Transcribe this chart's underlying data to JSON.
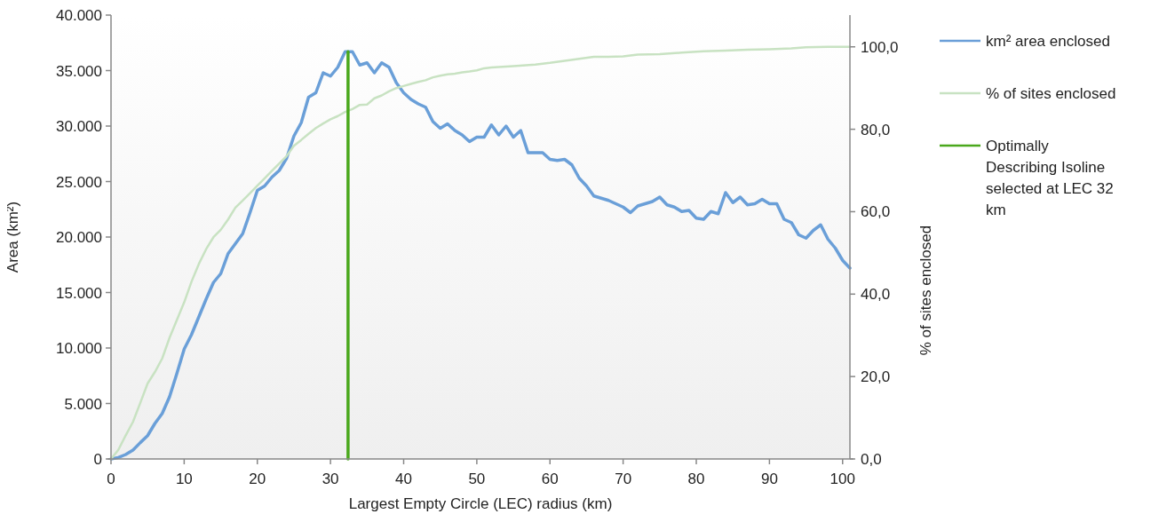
{
  "chart_data": {
    "type": "line",
    "xlabel": "Largest Empty Circle (LEC) radius (km)",
    "ylabel": "Area (km²)",
    "y2label": "% of sites enclosed",
    "xlim": [
      0,
      101
    ],
    "xticks": [
      0,
      10,
      20,
      30,
      40,
      50,
      60,
      70,
      80,
      90,
      100
    ],
    "ylim": [
      0,
      40000
    ],
    "yticks": [
      0,
      {
        "value": 5000,
        "label": "5.000"
      },
      {
        "value": 10000,
        "label": "10.000"
      },
      {
        "value": 15000,
        "label": "15.000"
      },
      {
        "value": 20000,
        "label": "20.000"
      },
      {
        "value": 25000,
        "label": "25.000"
      },
      {
        "value": 30000,
        "label": "30.000"
      },
      {
        "value": 35000,
        "label": "35.000"
      },
      {
        "value": 40000,
        "label": "40.000"
      }
    ],
    "y2lim": [
      0,
      107.7
    ],
    "y2ticks": [
      {
        "value": 0,
        "label": "0,0"
      },
      {
        "value": 20,
        "label": "20,0"
      },
      {
        "value": 40,
        "label": "40,0"
      },
      {
        "value": 60,
        "label": "60,0"
      },
      {
        "value": 80,
        "label": "80,0"
      },
      {
        "value": 100,
        "label": "100,0"
      }
    ],
    "legend": "right",
    "series": [
      {
        "name": "km² area enclosed",
        "color": "#6a9fd8",
        "x": [
          0,
          1,
          2,
          3,
          4,
          5,
          6,
          7,
          8,
          9,
          10,
          11,
          12,
          13,
          14,
          15,
          16,
          17,
          18,
          19,
          20,
          21,
          22,
          23,
          24,
          25,
          26,
          27,
          28,
          29,
          30,
          31,
          32,
          33,
          34,
          35,
          36,
          37,
          38,
          39,
          40,
          41,
          42,
          43,
          44,
          45,
          46,
          47,
          48,
          49,
          50,
          51,
          52,
          53,
          54,
          55,
          56,
          57,
          58,
          59,
          60,
          61,
          62,
          63,
          64,
          65,
          66,
          67,
          68,
          69,
          70,
          71,
          72,
          73,
          74,
          75,
          76,
          77,
          78,
          79,
          80,
          81,
          82,
          83,
          84,
          85,
          86,
          87,
          88,
          89,
          90,
          91,
          92,
          93,
          94,
          95,
          96,
          97,
          98,
          99,
          100,
          101
        ],
        "values": [
          0,
          130,
          400,
          800,
          1470,
          2100,
          3200,
          4100,
          5600,
          7700,
          9900,
          11200,
          12800,
          14400,
          15900,
          16700,
          18500,
          19400,
          20300,
          22200,
          24200,
          24600,
          25400,
          26000,
          27100,
          29100,
          30300,
          32600,
          33000,
          34800,
          34500,
          35300,
          36700,
          36700,
          35500,
          35700,
          34800,
          35700,
          35300,
          33900,
          33000,
          32400,
          32000,
          31700,
          30400,
          29800,
          30200,
          29600,
          29200,
          28600,
          29000,
          29000,
          30100,
          29200,
          30000,
          29000,
          29600,
          27600,
          27600,
          27600,
          27000,
          26900,
          27000,
          26500,
          25300,
          24600,
          23700,
          23500,
          23300,
          23000,
          22700,
          22200,
          22800,
          23000,
          23200,
          23600,
          22900,
          22700,
          22300,
          22400,
          21700,
          21600,
          22300,
          22100,
          24000,
          23100,
          23600,
          22900,
          23000,
          23400,
          23000,
          23000,
          21600,
          21300,
          20200,
          19900,
          20600,
          21100,
          19800,
          19000,
          17900,
          17200
        ]
      },
      {
        "name": "% of sites enclosed",
        "color": "#c8e2c2",
        "axis": "y2",
        "x": [
          0,
          1,
          2,
          3,
          4,
          5,
          6,
          7,
          8,
          9,
          10,
          11,
          12,
          13,
          14,
          15,
          16,
          17,
          18,
          19,
          20,
          21,
          22,
          23,
          24,
          25,
          26,
          27,
          28,
          29,
          30,
          31,
          32,
          33,
          34,
          35,
          36,
          37,
          38,
          39,
          40,
          41,
          42,
          43,
          44,
          45,
          46,
          47,
          48,
          49,
          50,
          51,
          52,
          55,
          58,
          60,
          62,
          64,
          66,
          68,
          70,
          72,
          75,
          78,
          81,
          84,
          87,
          90,
          93,
          95,
          98,
          101
        ],
        "values": [
          0,
          2.2,
          5.7,
          9,
          13.6,
          18.3,
          21.1,
          24.4,
          29.4,
          33.7,
          38,
          43,
          47.3,
          50.9,
          53.8,
          55.6,
          58.1,
          61,
          62.7,
          64.5,
          66.3,
          68.1,
          69.9,
          71.7,
          73.5,
          76,
          77.4,
          78.9,
          80.3,
          81.4,
          82.4,
          83.2,
          84.2,
          84.9,
          85.9,
          86,
          87.5,
          88.2,
          89.2,
          90,
          90.5,
          91,
          91.5,
          91.9,
          92.6,
          93,
          93.3,
          93.5,
          93.8,
          94,
          94.3,
          94.8,
          95,
          95.3,
          95.7,
          96.1,
          96.6,
          97.1,
          97.6,
          97.6,
          97.7,
          98.1,
          98.2,
          98.6,
          98.9,
          99.1,
          99.3,
          99.4,
          99.6,
          99.9,
          100,
          100
        ]
      },
      {
        "name": "Optimally Describing Isoline selected at LEC 32 km",
        "color": "#4aa81c",
        "x": [
          32.4,
          32.4
        ],
        "values": [
          0,
          36700
        ]
      }
    ]
  }
}
